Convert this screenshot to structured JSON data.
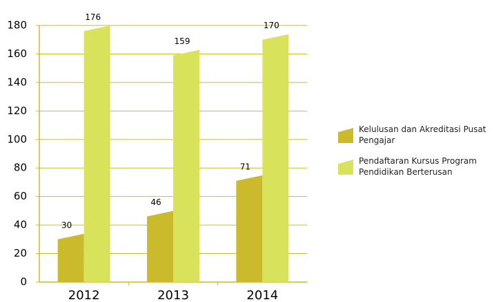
{
  "chart_data": {
    "type": "bar",
    "categories": [
      "2012",
      "2013",
      "2014"
    ],
    "series": [
      {
        "name": "Kelulusan dan Akreditasi Pusat Pengajar",
        "color": "#cbbb2c",
        "values": [
          30,
          46,
          71
        ]
      },
      {
        "name": "Pendaftaran Kursus Program Pendidikan Berterusan",
        "color": "#d9e25b",
        "values": [
          176,
          159,
          170
        ]
      }
    ],
    "ylim": [
      0,
      180
    ],
    "yticks": [
      0,
      20,
      40,
      60,
      80,
      100,
      120,
      140,
      160,
      180
    ],
    "grid": true
  }
}
